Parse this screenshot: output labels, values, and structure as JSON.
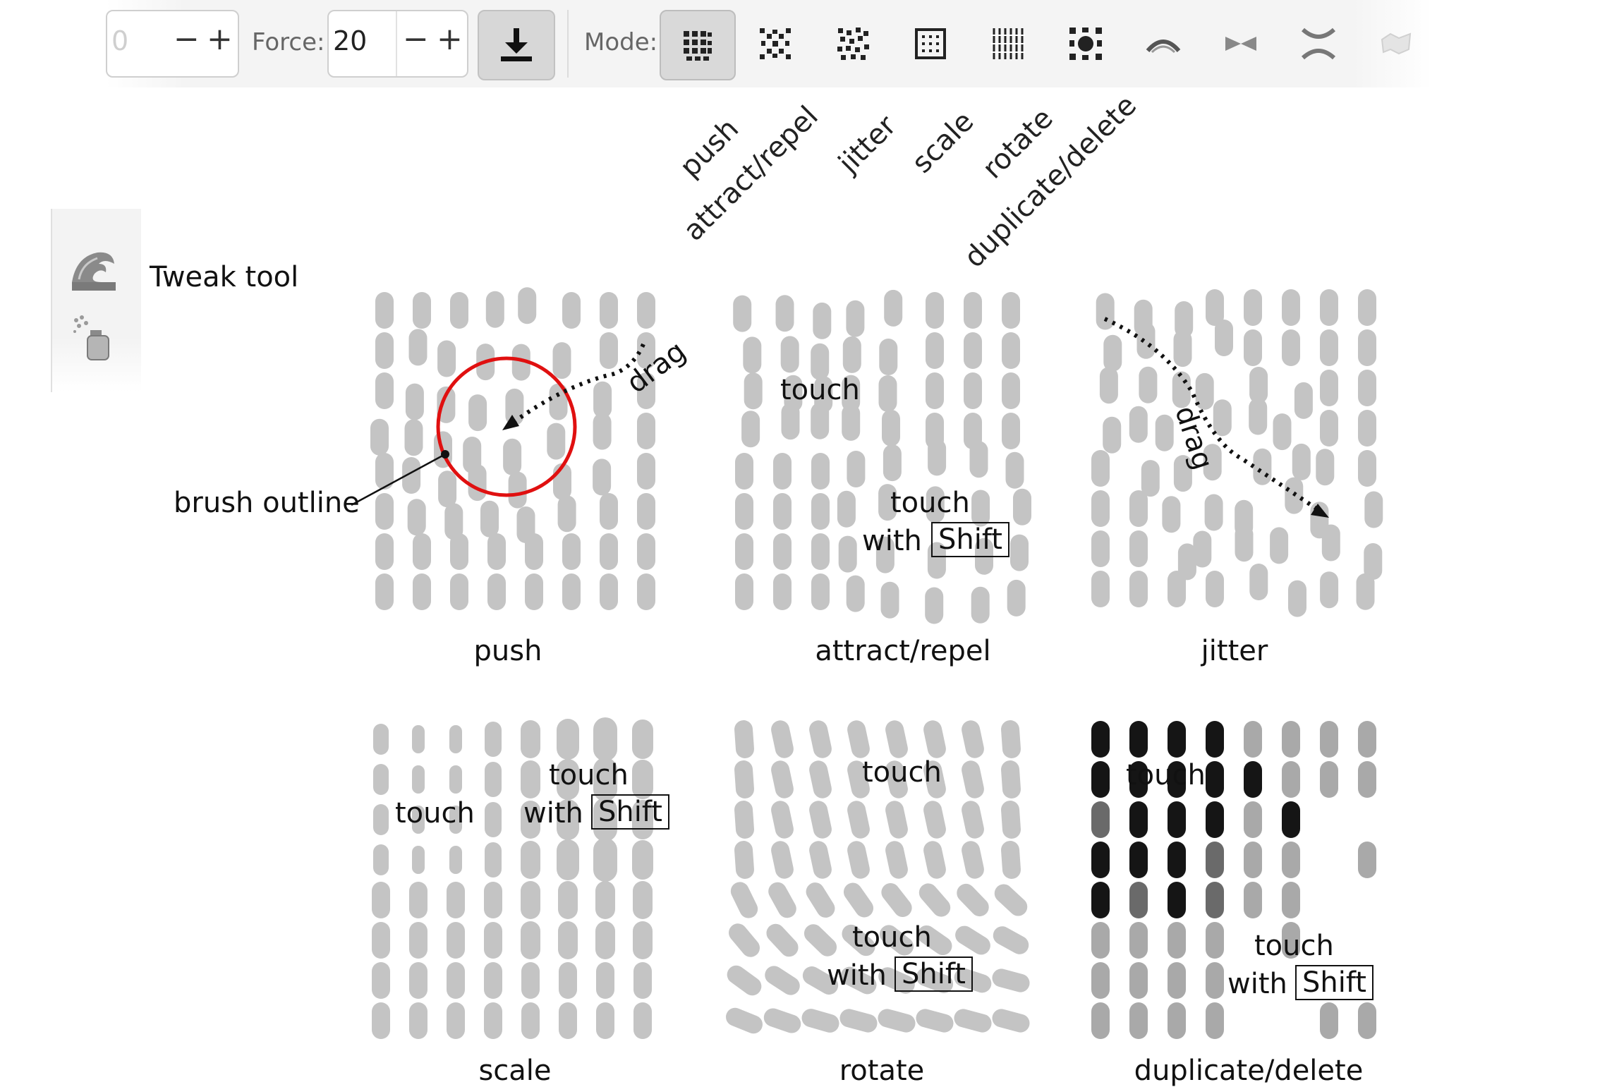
{
  "toolbar": {
    "prev_value": "0",
    "minus": "−",
    "plus": "+",
    "force_label": "Force:",
    "force_value": "20",
    "mode_label": "Mode:",
    "modes": [
      {
        "name": "push",
        "icon": "push-mode-icon",
        "active": true
      },
      {
        "name": "attract/repel",
        "icon": "attract-repel-mode-icon",
        "active": false
      },
      {
        "name": "jitter",
        "icon": "jitter-mode-icon",
        "active": false
      },
      {
        "name": "scale",
        "icon": "scale-mode-icon",
        "active": false
      },
      {
        "name": "rotate",
        "icon": "rotate-mode-icon",
        "active": false
      },
      {
        "name": "duplicate/delete",
        "icon": "duplicate-delete-mode-icon",
        "active": false
      },
      {
        "name": "",
        "icon": "shrink-path-mode-icon",
        "active": false
      },
      {
        "name": "",
        "icon": "pull-path-mode-icon",
        "active": false
      },
      {
        "name": "",
        "icon": "roughen-mode-icon",
        "active": false
      },
      {
        "name": "",
        "icon": "color-paint-mode-icon",
        "active": false
      }
    ]
  },
  "mode_labels": [
    "push",
    "attract/repel",
    "jitter",
    "scale",
    "rotate",
    "duplicate/delete"
  ],
  "toolbox": {
    "tool_label": "Tweak tool",
    "icons": [
      "tweak-tool-icon",
      "spray-tool-icon"
    ]
  },
  "annotations": {
    "brush_outline": "brush outline",
    "drag": "drag",
    "touch": "touch",
    "with": "with",
    "shift": "Shift"
  },
  "panels": {
    "push": "push",
    "attract_repel": "attract/repel",
    "jitter": "jitter",
    "scale": "scale",
    "rotate": "rotate",
    "duplicate_delete": "duplicate/delete"
  },
  "colors": {
    "pill": "#c4c4c4",
    "brush": "#e01010",
    "dark_pill": "#151515",
    "mid_pill": "#6a6a6a",
    "light_pill": "#a9a9a9"
  }
}
